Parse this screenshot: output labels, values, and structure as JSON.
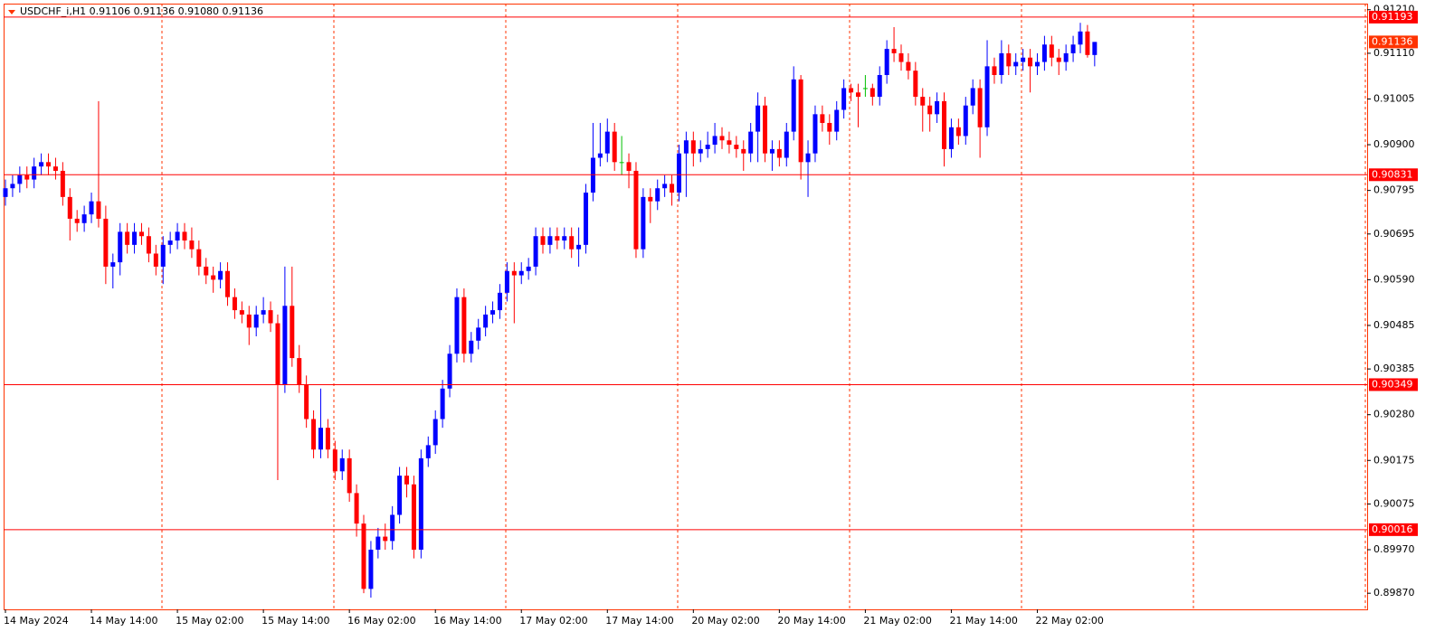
{
  "chart_data": {
    "type": "candlestick",
    "header": "USDCHF_i,H1  0.91106 0.91136 0.91080 0.91136",
    "categories": [
      "14 May 2024",
      null,
      null,
      null,
      null,
      null,
      null,
      null,
      null,
      null,
      null,
      null,
      "14 May 14:00",
      null,
      null,
      null,
      null,
      null,
      null,
      null,
      null,
      null,
      null,
      null,
      "15 May 02:00",
      null,
      null,
      null,
      null,
      null,
      null,
      null,
      null,
      null,
      null,
      null,
      "15 May 14:00",
      null,
      null,
      null,
      null,
      null,
      null,
      null,
      null,
      null,
      null,
      null,
      "16 May 02:00",
      null,
      null,
      null,
      null,
      null,
      null,
      null,
      null,
      null,
      null,
      null,
      "16 May 14:00",
      null,
      null,
      null,
      null,
      null,
      null,
      null,
      null,
      null,
      null,
      null,
      "17 May 02:00",
      null,
      null,
      null,
      null,
      null,
      null,
      null,
      null,
      null,
      null,
      null,
      "17 May 14:00",
      null,
      null,
      null,
      null,
      null,
      null,
      null,
      null,
      null,
      null,
      null,
      "20 May 02:00",
      null,
      null,
      null,
      null,
      null,
      null,
      null,
      null,
      null,
      null,
      null,
      "20 May 14:00",
      null,
      null,
      null,
      null,
      null,
      null,
      null,
      null,
      null,
      null,
      null,
      "21 May 02:00",
      null,
      null,
      null,
      null,
      null,
      null,
      null,
      null,
      null,
      null,
      null,
      "21 May 14:00",
      null,
      null,
      null,
      null,
      null,
      null,
      null,
      null,
      null,
      null,
      null,
      "22 May 02:00",
      null,
      null,
      null,
      null,
      null,
      null,
      null,
      null
    ],
    "open": [
      0.9078,
      0.908,
      0.9081,
      0.9083,
      0.9082,
      0.9085,
      0.9086,
      0.9085,
      0.9084,
      0.9078,
      0.9073,
      0.9072,
      0.9074,
      0.9077,
      0.9073,
      0.9062,
      0.9063,
      0.907,
      0.9067,
      0.907,
      0.9069,
      0.9065,
      0.9062,
      0.9067,
      0.9068,
      0.907,
      0.9068,
      0.9066,
      0.9062,
      0.906,
      0.9059,
      0.9061,
      0.9055,
      0.9052,
      0.9051,
      0.9048,
      0.9051,
      0.9052,
      0.9049,
      0.9035,
      0.9053,
      0.9041,
      0.9035,
      0.9027,
      0.902,
      0.9025,
      0.902,
      0.9015,
      0.9018,
      0.901,
      0.9003,
      0.8988,
      0.8997,
      0.9,
      0.8999,
      0.9005,
      0.9014,
      0.9012,
      0.8997,
      0.9018,
      0.9021,
      0.9027,
      0.9034,
      0.9042,
      0.9055,
      0.9042,
      0.9045,
      0.9048,
      0.9051,
      0.9052,
      0.9056,
      0.9061,
      0.906,
      0.9061,
      0.9062,
      0.9069,
      0.9067,
      0.9069,
      0.9068,
      0.9069,
      0.9066,
      0.9067,
      0.9079,
      0.9087,
      0.9088,
      0.9093,
      0.9086,
      0.9086,
      0.9084,
      0.9066,
      0.9078,
      0.9077,
      0.908,
      0.9081,
      0.9079,
      0.9088,
      0.9091,
      0.9088,
      0.9089,
      0.909,
      0.9092,
      0.9091,
      0.909,
      0.9089,
      0.9088,
      0.9093,
      0.9099,
      0.9088,
      0.9089,
      0.9087,
      0.9093,
      0.9105,
      0.9086,
      0.9088,
      0.9097,
      0.9095,
      0.9093,
      0.9098,
      0.9103,
      0.9102,
      0.9103,
      0.9103,
      0.9101,
      0.9106,
      0.9112,
      0.9111,
      0.9109,
      0.9107,
      0.9101,
      0.9099,
      0.9097,
      0.91,
      0.9089,
      0.9094,
      0.9092,
      0.9099,
      0.9103,
      0.9094,
      0.9108,
      0.9106,
      0.9111,
      0.9108,
      0.9109,
      0.911,
      0.9108,
      0.9109,
      0.9113,
      0.911,
      0.9109,
      0.9111,
      0.9113,
      0.9116,
      0.91106
    ],
    "high": [
      0.9082,
      0.9083,
      0.9085,
      0.9085,
      0.9087,
      0.9088,
      0.9088,
      0.9087,
      0.9086,
      0.908,
      0.9075,
      0.9076,
      0.9079,
      0.91,
      0.9076,
      0.9065,
      0.9072,
      0.9072,
      0.9072,
      0.9072,
      0.9071,
      0.9067,
      0.9069,
      0.907,
      0.9072,
      0.9072,
      0.9071,
      0.9068,
      0.9064,
      0.9062,
      0.9063,
      0.9063,
      0.9057,
      0.9054,
      0.9053,
      0.9053,
      0.9055,
      0.9054,
      0.9051,
      0.9062,
      0.9062,
      0.9044,
      0.9037,
      0.9029,
      0.9034,
      0.9027,
      0.9022,
      0.902,
      0.902,
      0.9012,
      0.9005,
      0.8999,
      0.9002,
      0.9003,
      0.9007,
      0.9016,
      0.9016,
      0.9014,
      0.902,
      0.9023,
      0.9029,
      0.9036,
      0.9044,
      0.9057,
      0.9057,
      0.9047,
      0.905,
      0.9053,
      0.9054,
      0.9058,
      0.9063,
      0.9063,
      0.9063,
      0.9064,
      0.9071,
      0.9071,
      0.9071,
      0.9071,
      0.9071,
      0.9071,
      0.9071,
      0.9081,
      0.9095,
      0.9095,
      0.9096,
      0.9095,
      0.9092,
      0.9088,
      0.9086,
      0.908,
      0.908,
      0.9082,
      0.9083,
      0.9083,
      0.909,
      0.9093,
      0.9093,
      0.9091,
      0.9093,
      0.9095,
      0.9094,
      0.9093,
      0.9092,
      0.9091,
      0.9095,
      0.9102,
      0.9101,
      0.9091,
      0.9091,
      0.9095,
      0.9108,
      0.9106,
      0.9091,
      0.9099,
      0.9099,
      0.9097,
      0.91,
      0.9105,
      0.9104,
      0.9104,
      0.9106,
      0.9104,
      0.9108,
      0.9114,
      0.9117,
      0.9113,
      0.9111,
      0.9109,
      0.9103,
      0.9101,
      0.9102,
      0.9102,
      0.9096,
      0.9096,
      0.9101,
      0.9105,
      0.9105,
      0.9114,
      0.911,
      0.9114,
      0.9113,
      0.9111,
      0.9112,
      0.9112,
      0.9111,
      0.9115,
      0.9115,
      0.9112,
      0.9113,
      0.9115,
      0.9118,
      0.91175,
      0.91136
    ],
    "low": [
      0.9076,
      0.9078,
      0.9079,
      0.908,
      0.908,
      0.9083,
      0.9083,
      0.9082,
      0.9076,
      0.9068,
      0.907,
      0.907,
      0.9072,
      0.9071,
      0.9058,
      0.9057,
      0.906,
      0.9065,
      0.9065,
      0.9067,
      0.9063,
      0.906,
      0.9058,
      0.9065,
      0.9066,
      0.9066,
      0.9064,
      0.906,
      0.9058,
      0.9056,
      0.9057,
      0.9053,
      0.905,
      0.9049,
      0.9044,
      0.9046,
      0.9049,
      0.9047,
      0.9013,
      0.9033,
      0.9039,
      0.9033,
      0.9025,
      0.9018,
      0.9018,
      0.9018,
      0.9013,
      0.9013,
      0.9008,
      0.9,
      0.8987,
      0.8986,
      0.8995,
      0.8997,
      0.8997,
      0.9003,
      0.9009,
      0.8995,
      0.8995,
      0.9016,
      0.9019,
      0.9025,
      0.9032,
      0.904,
      0.904,
      0.904,
      0.9043,
      0.9046,
      0.9049,
      0.905,
      0.9054,
      0.9049,
      0.9058,
      0.9059,
      0.906,
      0.9065,
      0.9065,
      0.9066,
      0.9066,
      0.9064,
      0.9062,
      0.9065,
      0.9077,
      0.9085,
      0.9086,
      0.9084,
      0.9083,
      0.908,
      0.9064,
      0.9064,
      0.9072,
      0.9075,
      0.9078,
      0.9076,
      0.9077,
      0.9078,
      0.9085,
      0.9086,
      0.9087,
      0.9088,
      0.9089,
      0.9088,
      0.9087,
      0.9084,
      0.9086,
      0.9086,
      0.9086,
      0.9084,
      0.9085,
      0.9085,
      0.9091,
      0.9082,
      0.9078,
      0.9086,
      0.9093,
      0.909,
      0.9091,
      0.9096,
      0.91,
      0.9094,
      0.9101,
      0.9099,
      0.9099,
      0.9104,
      0.9109,
      0.9107,
      0.9105,
      0.9099,
      0.9093,
      0.9093,
      0.9095,
      0.9085,
      0.9087,
      0.909,
      0.909,
      0.9097,
      0.9087,
      0.9092,
      0.9104,
      0.9104,
      0.9106,
      0.9106,
      0.9107,
      0.9102,
      0.9106,
      0.9107,
      0.9108,
      0.9106,
      0.9107,
      0.9109,
      0.9111,
      0.911,
      0.9108
    ],
    "close": [
      0.908,
      0.9081,
      0.9083,
      0.9082,
      0.9085,
      0.9086,
      0.9085,
      0.9084,
      0.9078,
      0.9073,
      0.9072,
      0.9074,
      0.9077,
      0.9073,
      0.9062,
      0.9063,
      0.907,
      0.9067,
      0.907,
      0.9069,
      0.9065,
      0.9062,
      0.9067,
      0.9068,
      0.907,
      0.9068,
      0.9066,
      0.9062,
      0.906,
      0.9059,
      0.9061,
      0.9055,
      0.9052,
      0.9051,
      0.9048,
      0.9051,
      0.9052,
      0.9049,
      0.9035,
      0.9053,
      0.9041,
      0.9035,
      0.9027,
      0.902,
      0.9025,
      0.902,
      0.9015,
      0.9018,
      0.901,
      0.9003,
      0.8988,
      0.8997,
      0.9,
      0.8999,
      0.9005,
      0.9014,
      0.9012,
      0.8997,
      0.9018,
      0.9021,
      0.9027,
      0.9034,
      0.9042,
      0.9055,
      0.9042,
      0.9045,
      0.9048,
      0.9051,
      0.9052,
      0.9056,
      0.9061,
      0.906,
      0.9061,
      0.9062,
      0.9069,
      0.9067,
      0.9069,
      0.9068,
      0.9069,
      0.9066,
      0.9067,
      0.9079,
      0.9087,
      0.9088,
      0.9093,
      0.9086,
      0.9086,
      0.9084,
      0.9066,
      0.9078,
      0.9077,
      0.908,
      0.9081,
      0.9079,
      0.9088,
      0.9091,
      0.9088,
      0.9089,
      0.909,
      0.9092,
      0.9091,
      0.909,
      0.9089,
      0.9088,
      0.9093,
      0.9099,
      0.9088,
      0.9089,
      0.9087,
      0.9093,
      0.9105,
      0.9086,
      0.9088,
      0.9097,
      0.9095,
      0.9093,
      0.9098,
      0.9103,
      0.9102,
      0.9101,
      0.9103,
      0.9101,
      0.9106,
      0.9112,
      0.9111,
      0.9109,
      0.9107,
      0.9101,
      0.9099,
      0.9097,
      0.91,
      0.9089,
      0.9094,
      0.9092,
      0.9099,
      0.9103,
      0.9094,
      0.9108,
      0.9106,
      0.9111,
      0.9108,
      0.9109,
      0.911,
      0.9108,
      0.9109,
      0.9113,
      0.911,
      0.9109,
      0.9111,
      0.9113,
      0.9116,
      0.91106,
      0.91136
    ],
    "up_color": "#0000ff",
    "down_color": "#ff0000",
    "doji_color": "#00c000",
    "level_color": "#ff0000",
    "levels": [
      0.91193,
      0.90831,
      0.90349,
      0.90016
    ],
    "bid": 0.91136,
    "ylim": [
      0.89833,
      0.91224
    ],
    "yticks": [
      {
        "value": 0.9121,
        "label": "0.91210"
      },
      {
        "value": 0.9111,
        "label": "0.91110"
      },
      {
        "value": 0.91005,
        "label": "0.91005"
      },
      {
        "value": 0.909,
        "label": "0.90900"
      },
      {
        "value": 0.90795,
        "label": "0.90795"
      },
      {
        "value": 0.90695,
        "label": "0.90695"
      },
      {
        "value": 0.9059,
        "label": "0.90590"
      },
      {
        "value": 0.90485,
        "label": "0.90485"
      },
      {
        "value": 0.90385,
        "label": "0.90385"
      },
      {
        "value": 0.9028,
        "label": "0.90280"
      },
      {
        "value": 0.90175,
        "label": "0.90175"
      },
      {
        "value": 0.90075,
        "label": "0.90075"
      },
      {
        "value": 0.8997,
        "label": "0.89970"
      },
      {
        "value": 0.8987,
        "label": "0.89870"
      }
    ]
  }
}
